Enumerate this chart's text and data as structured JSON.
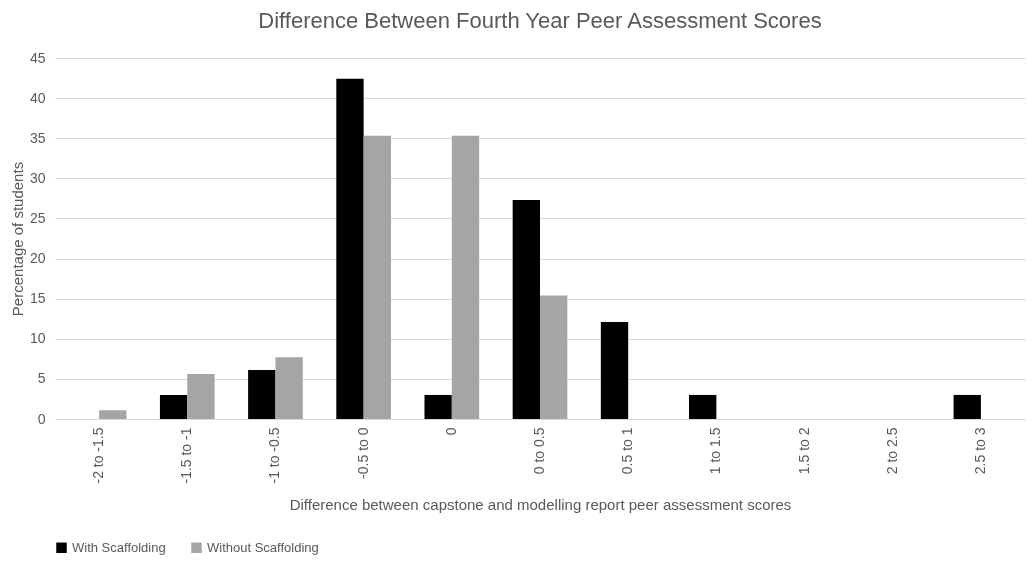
{
  "chart_data": {
    "type": "bar",
    "title": "Difference Between Fourth Year Peer Assessment Scores",
    "xlabel": "Difference between capstone and modelling report peer assessment scores",
    "ylabel": "Percentage of students",
    "categories": [
      "-2 to -1.5",
      "-1.5 to -1",
      "-1 to -0.5",
      "-0.5 to 0",
      "0",
      "0 to 0.5",
      "0.5 to 1",
      "1 to 1.5",
      "1.5 to 2",
      "2 to 2.5",
      "2.5 to 3"
    ],
    "series": [
      {
        "name": "With Scaffolding",
        "color": "#000000",
        "values": [
          null,
          3,
          6.1,
          42.4,
          3,
          27.3,
          12.1,
          3,
          null,
          null,
          3
        ]
      },
      {
        "name": "Without Scaffolding",
        "color": "#a5a5a5",
        "values": [
          1.1,
          5.6,
          7.7,
          35.3,
          35.3,
          15.4,
          null,
          null,
          null,
          null,
          null
        ]
      }
    ],
    "ylim": [
      0,
      45
    ],
    "yticks": [
      0,
      5,
      10,
      15,
      20,
      25,
      30,
      35,
      40,
      45
    ],
    "grid": "y",
    "legend": "bottom"
  }
}
